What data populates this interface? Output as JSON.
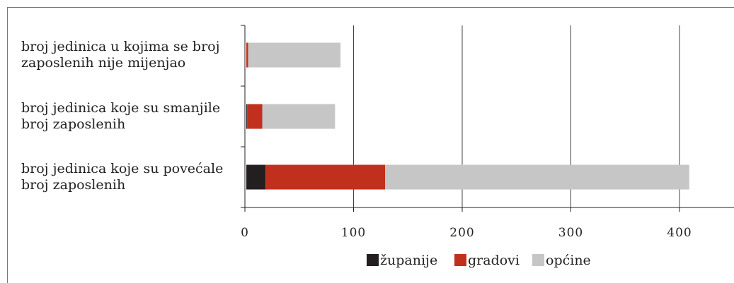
{
  "chart_data": {
    "type": "bar",
    "orientation": "horizontal",
    "stacked": true,
    "categories": [
      [
        "broj jedinica u kojima se broj",
        "zaposlenih nije mijenjao"
      ],
      [
        "broj jedinica koje su smanjile",
        "broj zaposlenih"
      ],
      [
        "broj jedinica koje su povećale",
        "broj zaposlenih"
      ]
    ],
    "series": [
      {
        "name": "županije",
        "color": "#231f20",
        "values": [
          0,
          2,
          19
        ]
      },
      {
        "name": "gradovi",
        "color": "#c1301c",
        "values": [
          3,
          14,
          110
        ]
      },
      {
        "name": "općine",
        "color": "#c6c6c6",
        "values": [
          85,
          67,
          280
        ]
      }
    ],
    "xlim": [
      0,
      450
    ],
    "xticks": [
      0,
      100,
      200,
      300,
      400
    ],
    "xtick_labels": [
      "0",
      "100",
      "200",
      "300",
      "400"
    ],
    "grid": "vertical",
    "legend": "bottom"
  }
}
